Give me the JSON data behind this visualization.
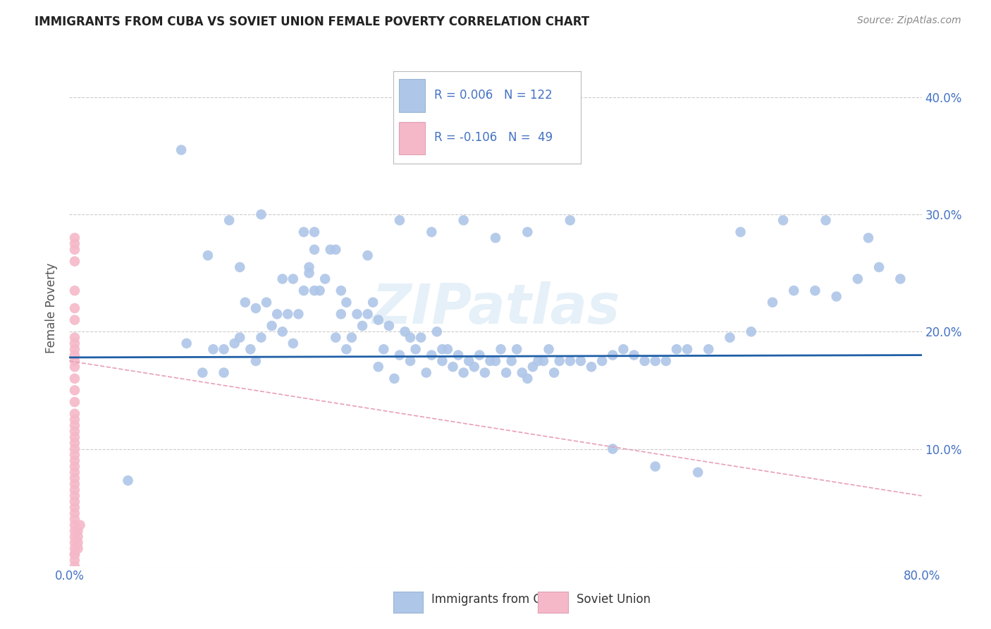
{
  "title": "IMMIGRANTS FROM CUBA VS SOVIET UNION FEMALE POVERTY CORRELATION CHART",
  "source": "Source: ZipAtlas.com",
  "ylabel": "Female Poverty",
  "cuba_color": "#aec6e8",
  "soviet_color": "#f5b8c8",
  "trendline_cuba_color": "#1f5fa6",
  "trendline_soviet_color": "#e8a0b4",
  "watermark": "ZIPatlas",
  "xlim": [
    0.0,
    0.8
  ],
  "ylim": [
    0.0,
    0.44
  ],
  "legend_R1": "R = 0.006",
  "legend_N1": "N = 122",
  "legend_R2": "R = -0.106",
  "legend_N2": "N =  49",
  "cuba_x": [
    0.055,
    0.105,
    0.11,
    0.125,
    0.135,
    0.145,
    0.145,
    0.155,
    0.16,
    0.165,
    0.17,
    0.175,
    0.175,
    0.18,
    0.185,
    0.19,
    0.195,
    0.2,
    0.205,
    0.21,
    0.21,
    0.215,
    0.22,
    0.225,
    0.225,
    0.23,
    0.23,
    0.235,
    0.24,
    0.245,
    0.25,
    0.255,
    0.255,
    0.26,
    0.265,
    0.27,
    0.275,
    0.28,
    0.285,
    0.29,
    0.295,
    0.3,
    0.305,
    0.31,
    0.315,
    0.32,
    0.325,
    0.33,
    0.335,
    0.34,
    0.345,
    0.35,
    0.355,
    0.36,
    0.365,
    0.37,
    0.375,
    0.38,
    0.385,
    0.39,
    0.395,
    0.4,
    0.405,
    0.41,
    0.415,
    0.42,
    0.425,
    0.43,
    0.435,
    0.44,
    0.445,
    0.45,
    0.455,
    0.46,
    0.47,
    0.48,
    0.49,
    0.5,
    0.51,
    0.52,
    0.53,
    0.54,
    0.55,
    0.56,
    0.57,
    0.58,
    0.6,
    0.62,
    0.64,
    0.66,
    0.68,
    0.7,
    0.72,
    0.74,
    0.76,
    0.78,
    0.15,
    0.18,
    0.22,
    0.25,
    0.28,
    0.31,
    0.34,
    0.37,
    0.4,
    0.43,
    0.47,
    0.51,
    0.55,
    0.59,
    0.63,
    0.67,
    0.71,
    0.75,
    0.13,
    0.16,
    0.2,
    0.23,
    0.26,
    0.29,
    0.32,
    0.35
  ],
  "cuba_y": [
    0.073,
    0.355,
    0.19,
    0.165,
    0.185,
    0.185,
    0.165,
    0.19,
    0.195,
    0.225,
    0.185,
    0.22,
    0.175,
    0.195,
    0.225,
    0.205,
    0.215,
    0.2,
    0.215,
    0.245,
    0.19,
    0.215,
    0.235,
    0.25,
    0.255,
    0.27,
    0.285,
    0.235,
    0.245,
    0.27,
    0.195,
    0.215,
    0.235,
    0.185,
    0.195,
    0.215,
    0.205,
    0.215,
    0.225,
    0.17,
    0.185,
    0.205,
    0.16,
    0.18,
    0.2,
    0.175,
    0.185,
    0.195,
    0.165,
    0.18,
    0.2,
    0.175,
    0.185,
    0.17,
    0.18,
    0.165,
    0.175,
    0.17,
    0.18,
    0.165,
    0.175,
    0.175,
    0.185,
    0.165,
    0.175,
    0.185,
    0.165,
    0.16,
    0.17,
    0.175,
    0.175,
    0.185,
    0.165,
    0.175,
    0.175,
    0.175,
    0.17,
    0.175,
    0.18,
    0.185,
    0.18,
    0.175,
    0.175,
    0.175,
    0.185,
    0.185,
    0.185,
    0.195,
    0.2,
    0.225,
    0.235,
    0.235,
    0.23,
    0.245,
    0.255,
    0.245,
    0.295,
    0.3,
    0.285,
    0.27,
    0.265,
    0.295,
    0.285,
    0.295,
    0.28,
    0.285,
    0.295,
    0.1,
    0.085,
    0.08,
    0.285,
    0.295,
    0.295,
    0.28,
    0.265,
    0.255,
    0.245,
    0.235,
    0.225,
    0.21,
    0.195,
    0.185
  ],
  "soviet_x": [
    0.005,
    0.005,
    0.005,
    0.005,
    0.005,
    0.005,
    0.005,
    0.005,
    0.005,
    0.005,
    0.005,
    0.005,
    0.005,
    0.005,
    0.005,
    0.005,
    0.005,
    0.005,
    0.005,
    0.005,
    0.005,
    0.005,
    0.005,
    0.005,
    0.005,
    0.005,
    0.005,
    0.005,
    0.005,
    0.005,
    0.005,
    0.005,
    0.005,
    0.005,
    0.005,
    0.005,
    0.005,
    0.005,
    0.005,
    0.005,
    0.005,
    0.005,
    0.005,
    0.005,
    0.008,
    0.008,
    0.008,
    0.008,
    0.01
  ],
  "soviet_y": [
    0.0,
    0.01,
    0.015,
    0.02,
    0.025,
    0.03,
    0.035,
    0.04,
    0.045,
    0.05,
    0.055,
    0.06,
    0.065,
    0.07,
    0.075,
    0.08,
    0.085,
    0.09,
    0.095,
    0.1,
    0.105,
    0.11,
    0.115,
    0.12,
    0.125,
    0.13,
    0.14,
    0.15,
    0.16,
    0.17,
    0.175,
    0.18,
    0.185,
    0.19,
    0.195,
    0.21,
    0.22,
    0.235,
    0.26,
    0.27,
    0.275,
    0.28,
    0.005,
    0.01,
    0.015,
    0.02,
    0.025,
    0.03,
    0.035
  ],
  "ytick_vals": [
    0.0,
    0.1,
    0.2,
    0.3,
    0.4
  ],
  "ytick_labels": [
    "",
    "10.0%",
    "20.0%",
    "30.0%",
    "40.0%"
  ],
  "xtick_vals": [
    0.0,
    0.1,
    0.2,
    0.3,
    0.4,
    0.5,
    0.6,
    0.7,
    0.8
  ],
  "xtick_labels": [
    "0.0%",
    "",
    "",
    "",
    "",
    "",
    "",
    "",
    "80.0%"
  ],
  "cuba_trend_y0": 0.178,
  "cuba_trend_y1": 0.18,
  "soviet_trend_y0": 0.175,
  "soviet_trend_y1": 0.06
}
